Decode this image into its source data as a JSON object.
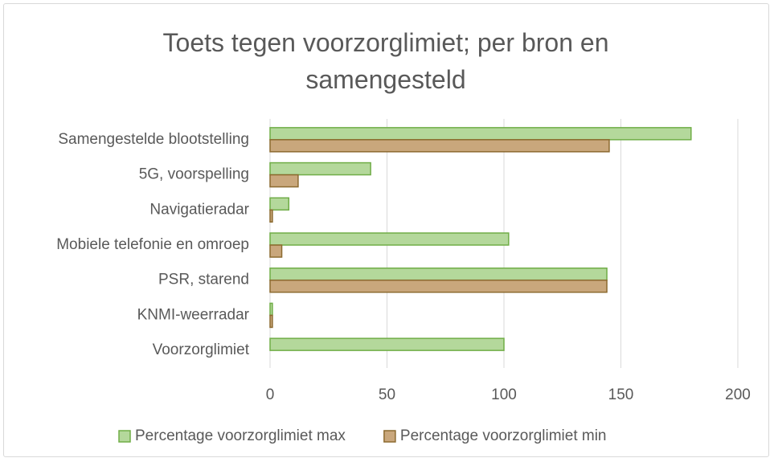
{
  "chart_data": {
    "type": "bar",
    "orientation": "horizontal",
    "title": "Toets tegen voorzorglimiet; per bron en samengesteld",
    "categories": [
      "Samengestelde blootstelling",
      "5G, voorspelling",
      "Navigatieradar",
      "Mobiele telefonie en omroep",
      "PSR, starend",
      "KNMI-weerradar",
      "Voorzorglimiet"
    ],
    "series": [
      {
        "name": "Percentage voorzorglimiet max",
        "color": "#b4d89b",
        "stroke": "#70ad47",
        "values": [
          180,
          43,
          8,
          102,
          144,
          1,
          100
        ]
      },
      {
        "name": "Percentage voorzorglimiet min",
        "color": "#c9a77c",
        "stroke": "#8c6a2f",
        "values": [
          145,
          12,
          1,
          5,
          144,
          1,
          null
        ]
      }
    ],
    "xlim": [
      0,
      200
    ],
    "xticks": [
      0,
      50,
      100,
      150,
      200
    ],
    "grid": true,
    "legend": "bottom"
  }
}
